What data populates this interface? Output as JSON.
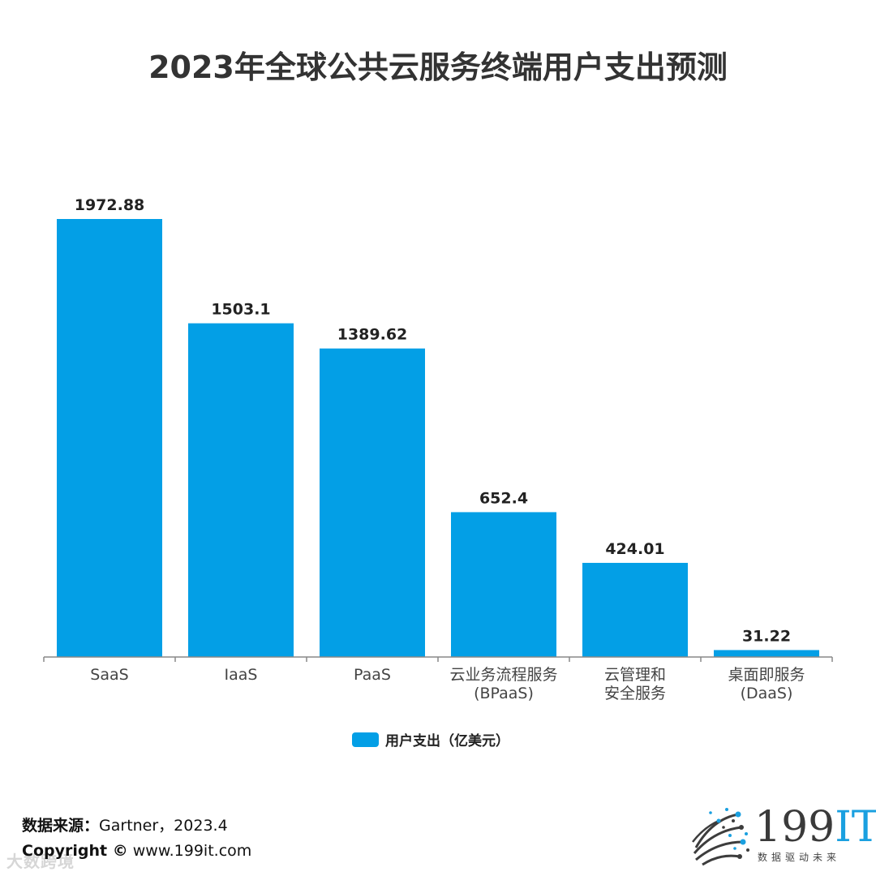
{
  "title": "2023年全球公共云服务终端用户支出预测",
  "chart_data": {
    "type": "bar",
    "title": "2023年全球公共云服务终端用户支出预测",
    "categories": [
      [
        "SaaS"
      ],
      [
        "IaaS"
      ],
      [
        "PaaS"
      ],
      [
        "云业务流程服务",
        "(BPaaS)"
      ],
      [
        "云管理和",
        "安全服务"
      ],
      [
        "桌面即服务",
        "(DaaS)"
      ]
    ],
    "series": [
      {
        "name": "用户支出（亿美元）",
        "values": [
          1972.88,
          1503.1,
          1389.62,
          652.4,
          424.01,
          31.22
        ],
        "labels": [
          "1972.88",
          "1503.1",
          "1389.62",
          "652.4",
          "424.01",
          "31.22"
        ]
      }
    ],
    "ylim": [
      0,
      1972.88
    ],
    "grid": false,
    "legend": "bottom-center",
    "xlabel": "",
    "ylabel": ""
  },
  "legend": {
    "label": "用户支出（亿美元）"
  },
  "colors": {
    "bar": "#039fe6",
    "axis": "#888888",
    "label": "#222222",
    "category": "#444444"
  },
  "footer": {
    "source_key": "数据来源：",
    "source_value": "Gartner，2023.4",
    "copyright_key": "Copyright ©",
    "copyright_value": "www.199it.com",
    "watermark": "大数跨境"
  },
  "logo": {
    "brand_digits": "199",
    "brand_letters": "IT",
    "tagline": "数据驱动未来"
  }
}
